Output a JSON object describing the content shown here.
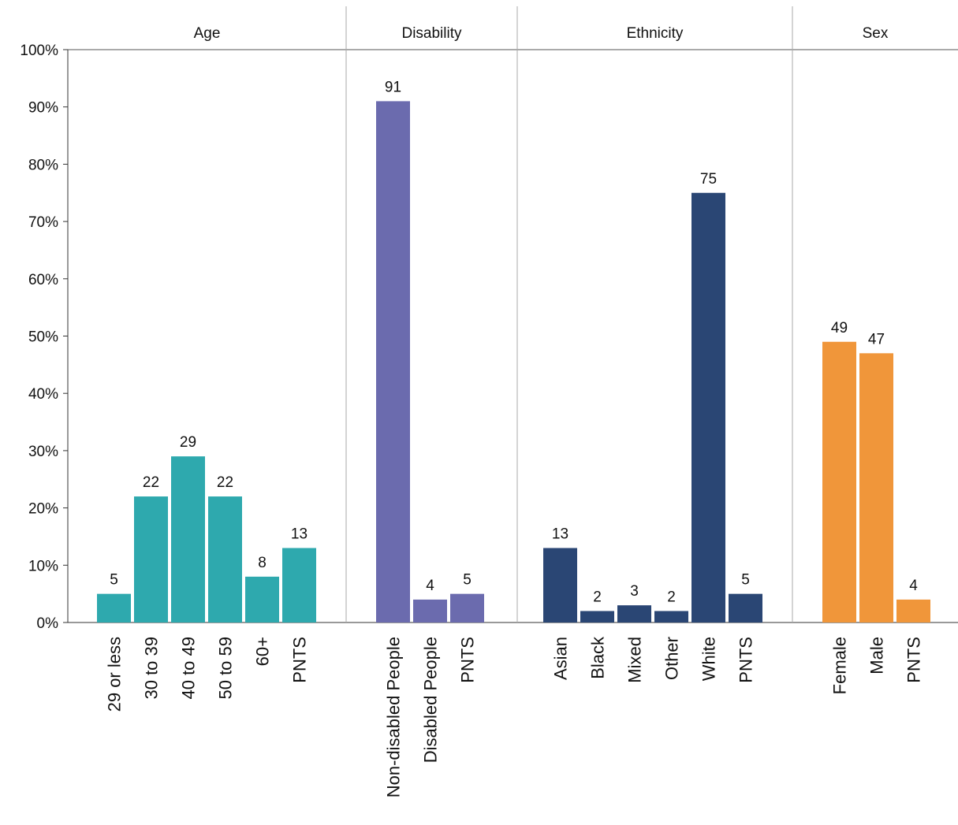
{
  "chart_data": {
    "type": "bar",
    "ylim": [
      0,
      100
    ],
    "yticks": [
      {
        "value": 0,
        "label": "0%"
      },
      {
        "value": 10,
        "label": "10%"
      },
      {
        "value": 20,
        "label": "20%"
      },
      {
        "value": 30,
        "label": "30%"
      },
      {
        "value": 40,
        "label": "40%"
      },
      {
        "value": 50,
        "label": "50%"
      },
      {
        "value": 60,
        "label": "60%"
      },
      {
        "value": 70,
        "label": "70%"
      },
      {
        "value": 80,
        "label": "80%"
      },
      {
        "value": 90,
        "label": "90%"
      },
      {
        "value": 100,
        "label": "100%"
      }
    ],
    "grid": false,
    "panels": [
      {
        "title": "Age",
        "color": "#2EA9AE",
        "categories": [
          "29 or less",
          "30 to 39",
          "40 to 49",
          "50 to 59",
          "60+",
          "PNTS"
        ],
        "values": [
          5,
          22,
          29,
          22,
          8,
          13
        ]
      },
      {
        "title": "Disability",
        "color": "#6B6BAE",
        "categories": [
          "Non-disabled People",
          "Disabled People",
          "PNTS"
        ],
        "values": [
          91,
          4,
          5
        ]
      },
      {
        "title": "Ethnicity",
        "color": "#2A4674",
        "categories": [
          "Asian",
          "Black",
          "Mixed",
          "Other",
          "White",
          "PNTS"
        ],
        "values": [
          13,
          2,
          3,
          2,
          75,
          5
        ]
      },
      {
        "title": "Sex",
        "color": "#F0963A",
        "categories": [
          "Female",
          "Male",
          "PNTS"
        ],
        "values": [
          49,
          47,
          4
        ]
      }
    ]
  }
}
